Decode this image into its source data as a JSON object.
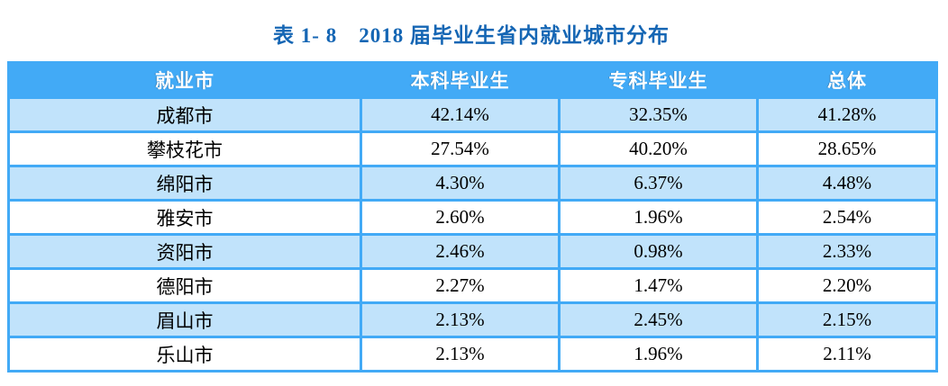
{
  "title": {
    "text": "表 1- 8　2018 届毕业生省内就业城市分布"
  },
  "colors": {
    "header_background": "#42aaf6",
    "header_text": "#ffffff",
    "alternating_row_background": "#c1e3fb",
    "grid_border": "#42aaf6",
    "title_text": "#1566b4",
    "body_text": "#000000",
    "page_background": "#ffffff"
  },
  "table": {
    "columns": [
      "就业市",
      "本科毕业生",
      "专科毕业生",
      "总体"
    ],
    "rows": [
      {
        "city": "成都市",
        "undergraduate": "42.14%",
        "junior_college": "32.35%",
        "overall": "41.28%"
      },
      {
        "city": "攀枝花市",
        "undergraduate": "27.54%",
        "junior_college": "40.20%",
        "overall": "28.65%"
      },
      {
        "city": "绵阳市",
        "undergraduate": "4.30%",
        "junior_college": "6.37%",
        "overall": "4.48%"
      },
      {
        "city": "雅安市",
        "undergraduate": "2.60%",
        "junior_college": "1.96%",
        "overall": "2.54%"
      },
      {
        "city": "资阳市",
        "undergraduate": "2.46%",
        "junior_college": "0.98%",
        "overall": "2.33%"
      },
      {
        "city": "德阳市",
        "undergraduate": "2.27%",
        "junior_college": "1.47%",
        "overall": "2.20%"
      },
      {
        "city": "眉山市",
        "undergraduate": "2.13%",
        "junior_college": "2.45%",
        "overall": "2.15%"
      },
      {
        "city": "乐山市",
        "undergraduate": "2.13%",
        "junior_college": "1.96%",
        "overall": "2.11%"
      }
    ]
  },
  "chart_data": {
    "type": "table",
    "title": "表 1- 8　2018 届毕业生省内就业城市分布",
    "columns": [
      "就业市",
      "本科毕业生",
      "专科毕业生",
      "总体"
    ],
    "rows": [
      [
        "成都市",
        "42.14%",
        "32.35%",
        "41.28%"
      ],
      [
        "攀枝花市",
        "27.54%",
        "40.20%",
        "28.65%"
      ],
      [
        "绵阳市",
        "4.30%",
        "6.37%",
        "4.48%"
      ],
      [
        "雅安市",
        "2.60%",
        "1.96%",
        "2.54%"
      ],
      [
        "资阳市",
        "2.46%",
        "0.98%",
        "2.33%"
      ],
      [
        "德阳市",
        "2.27%",
        "1.47%",
        "2.20%"
      ],
      [
        "眉山市",
        "2.13%",
        "2.45%",
        "2.15%"
      ],
      [
        "乐山市",
        "2.13%",
        "1.96%",
        "2.11%"
      ]
    ]
  }
}
